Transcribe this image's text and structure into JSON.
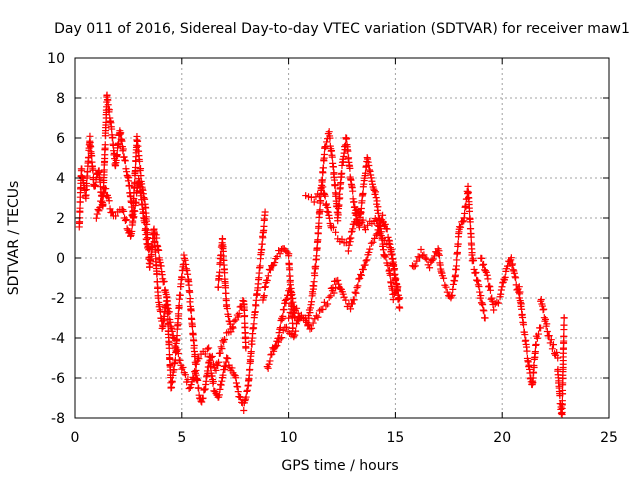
{
  "chart_data": {
    "type": "scatter",
    "title": "Day 011 of 2016, Sidereal Day-to-day VTEC variation (SDTVAR) for receiver maw1",
    "xlabel": "GPS time / hours",
    "ylabel": "SDTVAR / TECUs",
    "xlim": [
      0,
      25
    ],
    "ylim": [
      -8,
      10
    ],
    "xticks": [
      0,
      5,
      10,
      15,
      20,
      25
    ],
    "yticks": [
      -8,
      -6,
      -4,
      -2,
      0,
      2,
      4,
      6,
      8,
      10
    ],
    "grid": true,
    "marker": "+",
    "color": "#ff0000",
    "series": [
      {
        "name": "maw1",
        "segments": [
          [
            [
              0.2,
              1.5
            ],
            [
              0.3,
              4.5
            ],
            [
              0.5,
              3.0
            ],
            [
              0.7,
              6.0
            ],
            [
              0.9,
              3.5
            ],
            [
              1.1,
              4.5
            ],
            [
              1.3,
              2.5
            ],
            [
              1.5,
              8.2
            ],
            [
              1.7,
              6.5
            ],
            [
              1.9,
              4.5
            ],
            [
              2.1,
              6.5
            ],
            [
              2.3,
              5.0
            ],
            [
              2.5,
              4.0
            ],
            [
              2.7,
              2.0
            ],
            [
              2.9,
              6.0
            ],
            [
              3.1,
              4.0
            ],
            [
              3.3,
              2.5
            ],
            [
              3.5,
              -0.5
            ],
            [
              3.7,
              1.5
            ],
            [
              3.9,
              -2.0
            ],
            [
              4.1,
              -3.5
            ],
            [
              4.3,
              -2.0
            ],
            [
              4.5,
              -6.5
            ],
            [
              4.7,
              -5.0
            ],
            [
              4.9,
              -2.0
            ],
            [
              5.1,
              0.0
            ],
            [
              5.3,
              -1.0
            ],
            [
              5.5,
              -3.5
            ],
            [
              5.7,
              -6.0
            ],
            [
              5.9,
              -7.3
            ],
            [
              6.1,
              -6.5
            ],
            [
              6.3,
              -5.0
            ],
            [
              6.5,
              -6.5
            ],
            [
              6.7,
              -7.0
            ],
            [
              6.9,
              -6.0
            ],
            [
              7.1,
              -5.0
            ],
            [
              7.3,
              -5.5
            ],
            [
              7.5,
              -6.0
            ],
            [
              7.7,
              -7.0
            ],
            [
              7.9,
              -7.5
            ],
            [
              8.1,
              -6.5
            ],
            [
              8.3,
              -4.0
            ],
            [
              8.5,
              -2.0
            ],
            [
              8.7,
              0.0
            ],
            [
              8.9,
              2.3
            ]
          ],
          [
            [
              1.0,
              2.0
            ],
            [
              1.4,
              3.5
            ],
            [
              1.8,
              2.0
            ],
            [
              2.2,
              2.5
            ],
            [
              2.6,
              1.0
            ],
            [
              3.0,
              4.0
            ],
            [
              3.4,
              0.5
            ],
            [
              3.8,
              1.0
            ],
            [
              4.2,
              -1.5
            ],
            [
              4.6,
              -4.0
            ],
            [
              5.0,
              -5.5
            ],
            [
              5.4,
              -6.5
            ],
            [
              5.8,
              -5.0
            ],
            [
              6.2,
              -4.5
            ],
            [
              6.6,
              -5.5
            ],
            [
              7.0,
              -4.0
            ],
            [
              7.4,
              -3.5
            ]
          ],
          [
            [
              6.7,
              -1.5
            ],
            [
              6.9,
              1.0
            ],
            [
              7.1,
              -2.5
            ],
            [
              7.3,
              -3.5
            ],
            [
              7.6,
              -3.0
            ],
            [
              7.9,
              -2.0
            ],
            [
              8.0,
              -4.5
            ]
          ],
          [
            [
              9.0,
              -5.5
            ],
            [
              9.3,
              -4.5
            ],
            [
              9.6,
              -4.0
            ],
            [
              9.9,
              -3.5
            ],
            [
              10.2,
              -4.0
            ],
            [
              10.5,
              -3.0
            ],
            [
              10.8,
              -3.0
            ],
            [
              11.0,
              -3.5
            ],
            [
              11.3,
              -3.0
            ],
            [
              11.6,
              -2.5
            ],
            [
              11.9,
              -2.0
            ],
            [
              12.2,
              -1.5
            ]
          ],
          [
            [
              8.8,
              -2.0
            ],
            [
              9.0,
              -1.0
            ],
            [
              9.2,
              -0.5
            ],
            [
              9.4,
              0.0
            ],
            [
              9.6,
              0.3
            ],
            [
              9.8,
              0.5
            ],
            [
              10.0,
              0.2
            ],
            [
              10.2,
              -3.5
            ]
          ],
          [
            [
              9.3,
              -4.5
            ],
            [
              9.5,
              -4.0
            ],
            [
              9.7,
              -3.0
            ],
            [
              9.9,
              -2.0
            ],
            [
              10.1,
              -1.5
            ],
            [
              10.3,
              -3.0
            ]
          ],
          [
            [
              10.0,
              -3.0
            ],
            [
              10.3,
              -2.5
            ],
            [
              10.6,
              -3.0
            ],
            [
              10.9,
              -3.2
            ],
            [
              11.1,
              -2.0
            ],
            [
              11.3,
              0.0
            ],
            [
              11.5,
              3.0
            ],
            [
              11.7,
              5.5
            ],
            [
              11.9,
              6.2
            ],
            [
              12.1,
              4.5
            ],
            [
              12.3,
              2.0
            ],
            [
              12.5,
              4.5
            ],
            [
              12.7,
              6.0
            ],
            [
              12.9,
              4.0
            ],
            [
              13.1,
              2.5
            ],
            [
              13.3,
              1.5
            ],
            [
              13.5,
              3.5
            ],
            [
              13.7,
              5.0
            ],
            [
              13.9,
              4.0
            ],
            [
              14.1,
              3.0
            ],
            [
              14.3,
              1.5
            ],
            [
              14.5,
              0.0
            ],
            [
              14.7,
              -0.5
            ],
            [
              14.9,
              -2.0
            ],
            [
              15.1,
              -1.5
            ]
          ],
          [
            [
              10.8,
              3.0
            ],
            [
              11.2,
              2.8
            ],
            [
              11.6,
              3.5
            ],
            [
              12.0,
              1.5
            ],
            [
              12.4,
              1.0
            ],
            [
              12.8,
              0.5
            ],
            [
              13.2,
              2.5
            ],
            [
              13.6,
              1.5
            ],
            [
              14.0,
              2.0
            ],
            [
              14.4,
              1.0
            ],
            [
              14.8,
              0.5
            ],
            [
              15.2,
              -2.5
            ]
          ],
          [
            [
              12.0,
              -1.5
            ],
            [
              12.3,
              -1.0
            ],
            [
              12.6,
              -2.0
            ],
            [
              12.9,
              -2.5
            ],
            [
              13.2,
              -1.5
            ],
            [
              13.5,
              -0.5
            ],
            [
              13.8,
              0.5
            ],
            [
              14.1,
              1.0
            ],
            [
              14.4,
              2.0
            ],
            [
              14.7,
              1.0
            ],
            [
              15.0,
              -1.0
            ],
            [
              15.2,
              -2.0
            ]
          ],
          [
            [
              15.8,
              -0.5
            ],
            [
              16.2,
              0.3
            ],
            [
              16.6,
              -0.5
            ],
            [
              17.0,
              0.5
            ],
            [
              17.2,
              -1.0
            ],
            [
              17.6,
              -2.0
            ],
            [
              17.8,
              -1.0
            ],
            [
              18.0,
              1.5
            ],
            [
              18.2,
              2.0
            ],
            [
              18.4,
              3.5
            ],
            [
              18.6,
              0.0
            ],
            [
              18.8,
              -1.0
            ],
            [
              19.0,
              -2.0
            ],
            [
              19.2,
              -3.0
            ]
          ],
          [
            [
              19.0,
              0.0
            ],
            [
              19.3,
              -1.0
            ],
            [
              19.6,
              -2.5
            ],
            [
              19.9,
              -2.0
            ],
            [
              20.2,
              -0.5
            ],
            [
              20.4,
              0.0
            ],
            [
              20.6,
              -1.0
            ],
            [
              20.8,
              -2.0
            ]
          ],
          [
            [
              20.8,
              -1.5
            ],
            [
              21.0,
              -3.5
            ],
            [
              21.2,
              -5.0
            ],
            [
              21.4,
              -6.5
            ],
            [
              21.6,
              -4.0
            ],
            [
              21.8,
              -3.5
            ]
          ],
          [
            [
              21.8,
              -2.0
            ],
            [
              22.0,
              -3.0
            ],
            [
              22.2,
              -4.0
            ],
            [
              22.4,
              -4.5
            ],
            [
              22.6,
              -5.0
            ]
          ],
          [
            [
              22.6,
              -5.5
            ],
            [
              22.7,
              -7.0
            ],
            [
              22.8,
              -8.0
            ],
            [
              22.9,
              -3.0
            ]
          ]
        ]
      }
    ]
  }
}
